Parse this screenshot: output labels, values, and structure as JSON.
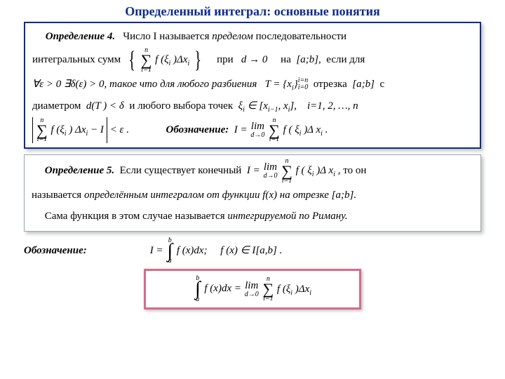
{
  "title": "Определенный интеграл: основные понятия",
  "def4": {
    "head": "Определение 4.",
    "p1a": "Число I называется",
    "p1b": "пределом",
    "p1c": "последовательности",
    "p2a": "интегральных  сумм",
    "p2b": "при",
    "p2c": "на",
    "sum_top": "n",
    "sum_bot": "i=1",
    "sum_body": "f (ξ",
    "sum_body2": ")Δx",
    "cond_d": "d → 0",
    "interval": "[a;b],",
    "p2d": "если  для",
    "p3a": "∀ε > 0   ∃δ(ε) > 0,  такое что для любого разбиения",
    "T": "T =",
    "seq": "x",
    "stack_top": "i=n",
    "stack_bot": "i=0",
    "p3b": "отрезка",
    "interval2": "[a;b]",
    "p3c": "с",
    "p4a": "диаметром",
    "dT": "d(T ) < δ",
    "p4b": "и любого выбора   точек",
    "xi_in": "ξ",
    "xi_sub": "i",
    "in": " ∈ ",
    "xint": "[x",
    "xint_s1": "i−1",
    "xint_mid": ", x",
    "xint_s2": "i",
    "xint_end": "],",
    "p4c": "i=1,  2,  …,  n",
    "abs_sum_top": "n",
    "abs_sum_bot": "i=1",
    "abs_body1": "f (ξ",
    "abs_body2": ") Δx",
    "abs_tail": " − I",
    "abs_lt": " < ε .",
    "notation_label": "Обозначение:",
    "not_lhs": "I = ",
    "lim_t": "lim",
    "lim_u": "d→0",
    "rhs_sum_top": "n",
    "rhs_sum_bot": "i=1",
    "rhs_body1": "f ( ξ",
    "rhs_body2": " )Δ x",
    "tail_dot": " ."
  },
  "def5": {
    "head": "Определение 5.",
    "p1a": "Если существует конечный",
    "I_eq": "I = ",
    "lim_t": "lim",
    "lim_u": "d→0",
    "sum_top": "n",
    "sum_bot": "i=1",
    "body1": "f ( ξ",
    "body2": " )Δ x",
    "p1b": ",  то он",
    "p2a": "называется",
    "p2b": "определённым интегралом от функции f(x) на отрезке",
    "interval": "[a;b].",
    "p3": "Сама функция в этом случае называется",
    "p3b": "интегрируемой по Риману."
  },
  "notation2": {
    "label": "Обозначение:",
    "I": "I = ",
    "int_top": "b",
    "int_bot": "a",
    "body": "f (x)dx;",
    "tail": "f (x) ∈ I[a,b] ."
  },
  "red": {
    "int_top": "b",
    "int_bot": "a",
    "lhs": "f (x)dx = ",
    "lim_t": "lim",
    "lim_u": "d→0",
    "sum_top": "n",
    "sum_bot": "i=1",
    "body1": "f (ξ",
    "body2": ")Δx"
  },
  "colors": {
    "title": "#0b2b8b",
    "box1_border": "#0b2b8b",
    "redbox_border": "#d86a8a",
    "bg": "#ffffff"
  }
}
